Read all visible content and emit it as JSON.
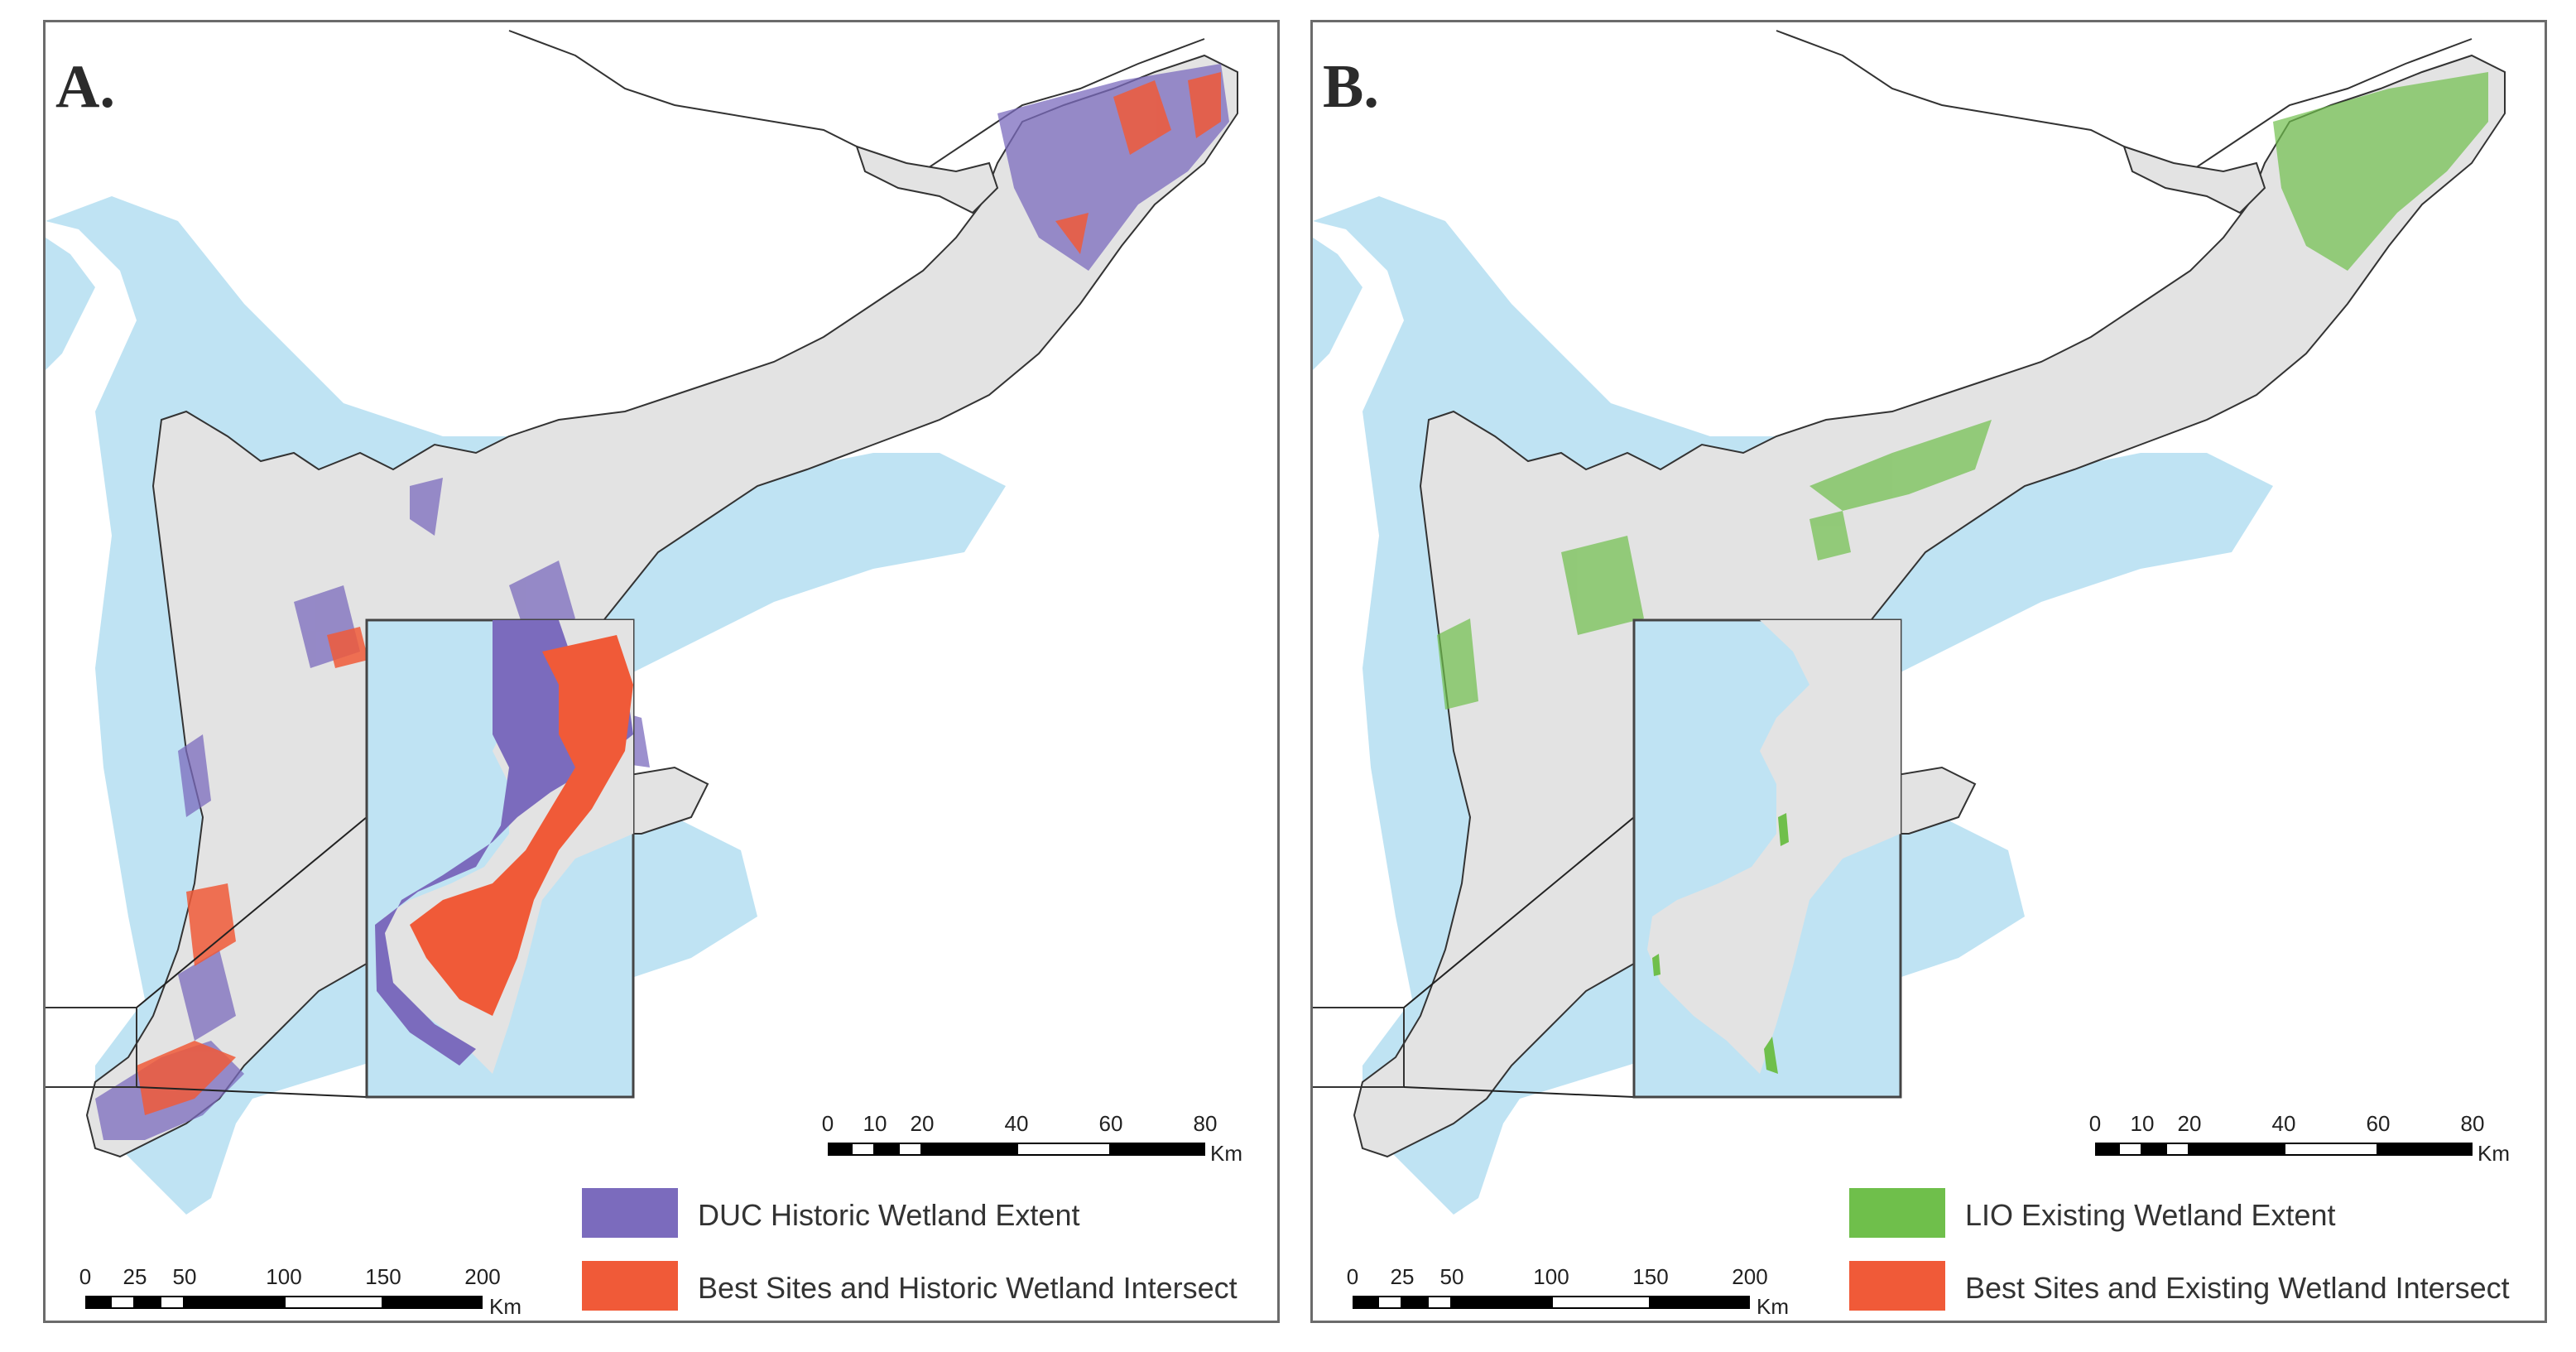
{
  "colors": {
    "water": "#bfe3f3",
    "land": "#e3e3e3",
    "land_outline": "#333333",
    "historic_wetland": "#7b6bbd",
    "existing_wetland": "#6fbf4b",
    "intersect": "#f05a38",
    "frame": "#6b6b6b"
  },
  "panels": [
    {
      "letter": "A.",
      "legend": [
        {
          "label": "DUC Historic Wetland Extent",
          "color": "#7b6bbd"
        },
        {
          "label": "Best Sites and Historic Wetland Intersect",
          "color": "#f05a38"
        }
      ],
      "main_scale": {
        "ticks": [
          "0",
          "25",
          "50",
          "100",
          "150",
          "200"
        ],
        "unit": "Km"
      },
      "inset_scale": {
        "ticks": [
          "0",
          "10",
          "20",
          "40",
          "60",
          "80"
        ],
        "unit": "Km"
      }
    },
    {
      "letter": "B.",
      "legend": [
        {
          "label": "LIO Existing Wetland Extent",
          "color": "#6fbf4b"
        },
        {
          "label": "Best Sites and Existing Wetland Intersect",
          "color": "#f05a38"
        }
      ],
      "main_scale": {
        "ticks": [
          "0",
          "25",
          "50",
          "100",
          "150",
          "200"
        ],
        "unit": "Km"
      },
      "inset_scale": {
        "ticks": [
          "0",
          "10",
          "20",
          "40",
          "60",
          "80"
        ],
        "unit": "Km"
      }
    }
  ]
}
